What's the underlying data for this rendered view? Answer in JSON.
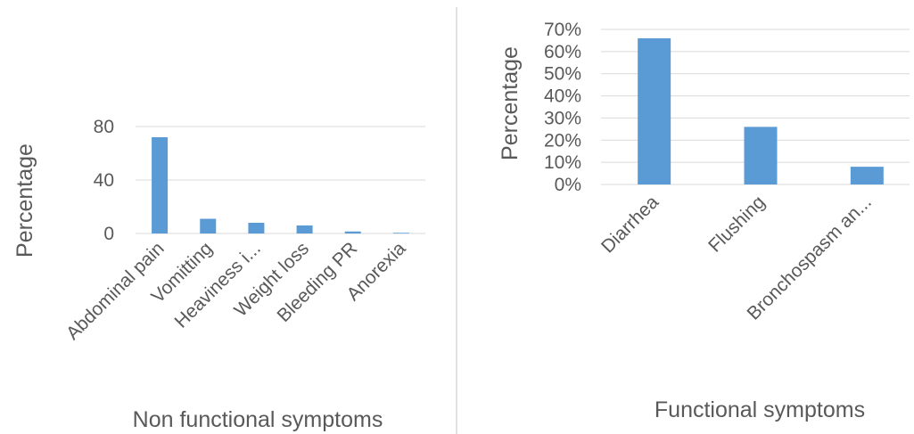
{
  "chart_data": [
    {
      "type": "bar",
      "xlabel": "Non functional symptoms",
      "ylabel": "Percentage",
      "categories": [
        "Abdominal pain",
        "Vomitting",
        "Heaviness i...",
        "Weight loss",
        "Bleeding PR",
        "Anorexia"
      ],
      "values": [
        72,
        11,
        8,
        6,
        1.5,
        0.5
      ],
      "ylim": [
        0,
        80
      ],
      "yticks": [
        "0",
        "40",
        "80"
      ],
      "bar_color": "#5b9bd5",
      "grid": true
    },
    {
      "type": "bar",
      "xlabel": "Functional symptoms",
      "ylabel": "Percentage",
      "categories": [
        "Diarrhea",
        "Flushing",
        "Bronchospasm an..."
      ],
      "values": [
        66,
        26,
        8
      ],
      "ylim": [
        0,
        70
      ],
      "yticks": [
        "0%",
        "10%",
        "20%",
        "30%",
        "40%",
        "50%",
        "60%",
        "70%"
      ],
      "bar_color": "#5b9bd5",
      "grid": true
    }
  ]
}
